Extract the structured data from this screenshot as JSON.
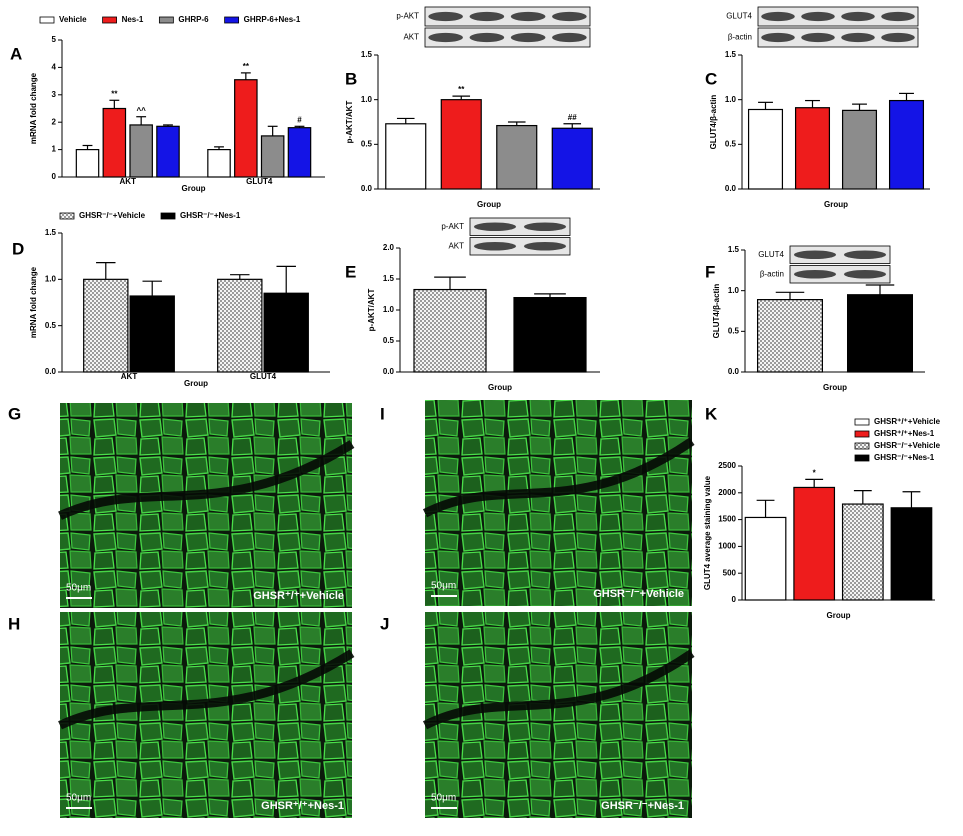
{
  "chart_data": [
    {
      "type": "bar",
      "panel": "A",
      "y_label": "mRNA fold change",
      "x_label": "Group",
      "legend": "top",
      "categories": [
        "AKT",
        "GLUT4"
      ],
      "ylim": [
        0,
        5
      ],
      "yticks": [
        0,
        1,
        2,
        3,
        4,
        5
      ],
      "series": [
        {
          "name": "Vehicle",
          "color": "#ffffff",
          "hatched": false,
          "values": [
            1.0,
            1.0
          ],
          "errors": [
            0.15,
            0.1
          ],
          "annotations": [
            null,
            null
          ]
        },
        {
          "name": "Nes-1",
          "color": "#ee1c1c",
          "hatched": false,
          "values": [
            2.5,
            3.55
          ],
          "errors": [
            0.3,
            0.25
          ],
          "annotations": [
            "**",
            "**"
          ]
        },
        {
          "name": "GHRP-6",
          "color": "#8c8c8c",
          "hatched": false,
          "values": [
            1.9,
            1.5
          ],
          "errors": [
            0.3,
            0.35
          ],
          "annotations": [
            "^^",
            null
          ]
        },
        {
          "name": "GHRP-6+Nes-1",
          "color": "#1414e6",
          "hatched": false,
          "values": [
            1.85,
            1.8
          ],
          "errors": [
            0.05,
            0.05
          ],
          "annotations": [
            null,
            "#"
          ]
        }
      ]
    },
    {
      "type": "bar",
      "panel": "B",
      "y_label": "p-AKT/AKT",
      "x_label": "Group",
      "blot_labels": [
        "p-AKT",
        "AKT"
      ],
      "ylim": [
        0,
        1.5
      ],
      "yticks": [
        {
          "value": 0,
          "label": "0.0"
        },
        0.5,
        {
          "value": 1,
          "label": "1.0"
        },
        1.5
      ],
      "values": [
        0.73,
        1.0,
        0.71,
        0.68
      ],
      "errors": [
        0.06,
        0.04,
        0.04,
        0.05
      ],
      "colors": [
        "#ffffff",
        "#ee1c1c",
        "#8c8c8c",
        "#1414e6"
      ],
      "hatched": [
        false,
        false,
        false,
        false
      ],
      "annotations": [
        null,
        "**",
        null,
        "##"
      ]
    },
    {
      "type": "bar",
      "panel": "C",
      "y_label": "GLUT4/β-actin",
      "x_label": "Group",
      "blot_labels": [
        "GLUT4",
        "β-actin"
      ],
      "ylim": [
        0,
        1.5
      ],
      "yticks": [
        {
          "value": 0,
          "label": "0.0"
        },
        0.5,
        {
          "value": 1,
          "label": "1.0"
        },
        1.5
      ],
      "values": [
        0.89,
        0.91,
        0.88,
        0.99
      ],
      "errors": [
        0.08,
        0.08,
        0.07,
        0.08
      ],
      "colors": [
        "#ffffff",
        "#ee1c1c",
        "#8c8c8c",
        "#1414e6"
      ],
      "hatched": [
        false,
        false,
        false,
        false
      ],
      "annotations": [
        null,
        null,
        null,
        null
      ]
    },
    {
      "type": "bar",
      "panel": "D",
      "y_label": "mRNA fold change",
      "x_label": "Group",
      "legend": "top",
      "categories": [
        "AKT",
        "GLUT4"
      ],
      "ylim": [
        0,
        1.5
      ],
      "yticks": [
        {
          "value": 0,
          "label": "0.0"
        },
        0.5,
        {
          "value": 1,
          "label": "1.0"
        },
        1.5
      ],
      "series": [
        {
          "name": "GHSR⁻/⁻+Vehicle",
          "color": "#d8d8d8",
          "hatched": true,
          "values": [
            1.0,
            1.0
          ],
          "errors": [
            0.18,
            0.05
          ],
          "annotations": [
            null,
            null
          ]
        },
        {
          "name": "GHSR⁻/⁻+Nes-1",
          "color": "#000000",
          "hatched": false,
          "values": [
            0.82,
            0.85
          ],
          "errors": [
            0.16,
            0.29
          ],
          "annotations": [
            null,
            null
          ]
        }
      ]
    },
    {
      "type": "bar",
      "panel": "E",
      "y_label": "p-AKT/AKT",
      "x_label": "Group",
      "blot_labels": [
        "p-AKT",
        "AKT"
      ],
      "ylim": [
        0,
        2
      ],
      "yticks": [
        {
          "value": 0,
          "label": "0.0"
        },
        0.5,
        {
          "value": 1,
          "label": "1.0"
        },
        1.5,
        {
          "value": 2,
          "label": "2.0"
        }
      ],
      "values": [
        1.33,
        1.2
      ],
      "errors": [
        0.2,
        0.06
      ],
      "colors": [
        "#d8d8d8",
        "#000000"
      ],
      "hatched": [
        true,
        false
      ],
      "annotations": [
        null,
        null
      ]
    },
    {
      "type": "bar",
      "panel": "F",
      "y_label": "GLUT4/β-actin",
      "x_label": "Group",
      "blot_labels": [
        "GLUT4",
        "β-actin"
      ],
      "ylim": [
        0,
        1.5
      ],
      "yticks": [
        {
          "value": 0,
          "label": "0.0"
        },
        0.5,
        {
          "value": 1,
          "label": "1.0"
        },
        1.5
      ],
      "values": [
        0.89,
        0.95
      ],
      "errors": [
        0.09,
        0.12
      ],
      "colors": [
        "#d8d8d8",
        "#000000"
      ],
      "hatched": [
        true,
        false
      ],
      "annotations": [
        null,
        null
      ]
    },
    {
      "type": "bar",
      "panel": "K",
      "y_label": "GLUT4  average staining value",
      "x_label": "Group",
      "legend": "top-right",
      "ylim": [
        0,
        2500
      ],
      "yticks": [
        0,
        500,
        1000,
        1500,
        2000,
        2500
      ],
      "series": [
        {
          "name": "GHSR⁺/⁺+Vehicle",
          "color": "#ffffff",
          "hatched": false,
          "values": [
            1540
          ],
          "errors": [
            320
          ],
          "annotations": [
            null
          ]
        },
        {
          "name": "GHSR⁺/⁺+Nes-1",
          "color": "#ee1c1c",
          "hatched": false,
          "values": [
            2100
          ],
          "errors": [
            150
          ],
          "annotations": [
            "*"
          ]
        },
        {
          "name": "GHSR⁻/⁻+Vehicle",
          "color": "#d8d8d8",
          "hatched": true,
          "values": [
            1790
          ],
          "errors": [
            250
          ],
          "annotations": [
            null
          ]
        },
        {
          "name": "GHSR⁻/⁻+Nes-1",
          "color": "#000000",
          "hatched": false,
          "values": [
            1720
          ],
          "errors": [
            300
          ],
          "annotations": [
            null
          ]
        }
      ]
    }
  ],
  "images": [
    {
      "panel": "G",
      "scale": "50μm",
      "caption": "GHSR⁺/⁺+Vehicle"
    },
    {
      "panel": "H",
      "scale": "50μm",
      "caption": "GHSR⁺/⁺+Nes-1"
    },
    {
      "panel": "I",
      "scale": "50μm",
      "caption": "GHSR⁻/⁻+Vehicle"
    },
    {
      "panel": "J",
      "scale": "50μm",
      "caption": "GHSR⁻/⁻+Nes-1"
    }
  ]
}
